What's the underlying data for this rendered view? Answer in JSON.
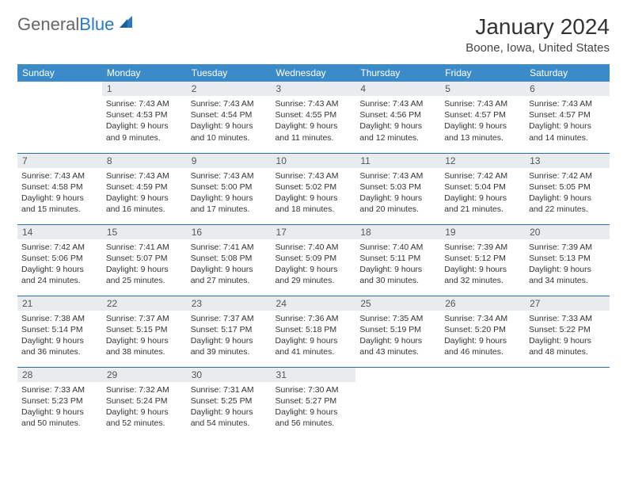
{
  "logo": {
    "general": "General",
    "blue": "Blue"
  },
  "title": "January 2024",
  "location": "Boone, Iowa, United States",
  "colors": {
    "header_bg": "#3b8bc9",
    "header_text": "#ffffff",
    "daynum_bg": "#e9ecef",
    "row_border": "#2a6da8",
    "logo_accent": "#2a7abf"
  },
  "day_headers": [
    "Sunday",
    "Monday",
    "Tuesday",
    "Wednesday",
    "Thursday",
    "Friday",
    "Saturday"
  ],
  "weeks": [
    [
      {
        "n": "",
        "sr": "",
        "ss": "",
        "dl": ""
      },
      {
        "n": "1",
        "sr": "7:43 AM",
        "ss": "4:53 PM",
        "dl": "9 hours and 9 minutes."
      },
      {
        "n": "2",
        "sr": "7:43 AM",
        "ss": "4:54 PM",
        "dl": "9 hours and 10 minutes."
      },
      {
        "n": "3",
        "sr": "7:43 AM",
        "ss": "4:55 PM",
        "dl": "9 hours and 11 minutes."
      },
      {
        "n": "4",
        "sr": "7:43 AM",
        "ss": "4:56 PM",
        "dl": "9 hours and 12 minutes."
      },
      {
        "n": "5",
        "sr": "7:43 AM",
        "ss": "4:57 PM",
        "dl": "9 hours and 13 minutes."
      },
      {
        "n": "6",
        "sr": "7:43 AM",
        "ss": "4:57 PM",
        "dl": "9 hours and 14 minutes."
      }
    ],
    [
      {
        "n": "7",
        "sr": "7:43 AM",
        "ss": "4:58 PM",
        "dl": "9 hours and 15 minutes."
      },
      {
        "n": "8",
        "sr": "7:43 AM",
        "ss": "4:59 PM",
        "dl": "9 hours and 16 minutes."
      },
      {
        "n": "9",
        "sr": "7:43 AM",
        "ss": "5:00 PM",
        "dl": "9 hours and 17 minutes."
      },
      {
        "n": "10",
        "sr": "7:43 AM",
        "ss": "5:02 PM",
        "dl": "9 hours and 18 minutes."
      },
      {
        "n": "11",
        "sr": "7:43 AM",
        "ss": "5:03 PM",
        "dl": "9 hours and 20 minutes."
      },
      {
        "n": "12",
        "sr": "7:42 AM",
        "ss": "5:04 PM",
        "dl": "9 hours and 21 minutes."
      },
      {
        "n": "13",
        "sr": "7:42 AM",
        "ss": "5:05 PM",
        "dl": "9 hours and 22 minutes."
      }
    ],
    [
      {
        "n": "14",
        "sr": "7:42 AM",
        "ss": "5:06 PM",
        "dl": "9 hours and 24 minutes."
      },
      {
        "n": "15",
        "sr": "7:41 AM",
        "ss": "5:07 PM",
        "dl": "9 hours and 25 minutes."
      },
      {
        "n": "16",
        "sr": "7:41 AM",
        "ss": "5:08 PM",
        "dl": "9 hours and 27 minutes."
      },
      {
        "n": "17",
        "sr": "7:40 AM",
        "ss": "5:09 PM",
        "dl": "9 hours and 29 minutes."
      },
      {
        "n": "18",
        "sr": "7:40 AM",
        "ss": "5:11 PM",
        "dl": "9 hours and 30 minutes."
      },
      {
        "n": "19",
        "sr": "7:39 AM",
        "ss": "5:12 PM",
        "dl": "9 hours and 32 minutes."
      },
      {
        "n": "20",
        "sr": "7:39 AM",
        "ss": "5:13 PM",
        "dl": "9 hours and 34 minutes."
      }
    ],
    [
      {
        "n": "21",
        "sr": "7:38 AM",
        "ss": "5:14 PM",
        "dl": "9 hours and 36 minutes."
      },
      {
        "n": "22",
        "sr": "7:37 AM",
        "ss": "5:15 PM",
        "dl": "9 hours and 38 minutes."
      },
      {
        "n": "23",
        "sr": "7:37 AM",
        "ss": "5:17 PM",
        "dl": "9 hours and 39 minutes."
      },
      {
        "n": "24",
        "sr": "7:36 AM",
        "ss": "5:18 PM",
        "dl": "9 hours and 41 minutes."
      },
      {
        "n": "25",
        "sr": "7:35 AM",
        "ss": "5:19 PM",
        "dl": "9 hours and 43 minutes."
      },
      {
        "n": "26",
        "sr": "7:34 AM",
        "ss": "5:20 PM",
        "dl": "9 hours and 46 minutes."
      },
      {
        "n": "27",
        "sr": "7:33 AM",
        "ss": "5:22 PM",
        "dl": "9 hours and 48 minutes."
      }
    ],
    [
      {
        "n": "28",
        "sr": "7:33 AM",
        "ss": "5:23 PM",
        "dl": "9 hours and 50 minutes."
      },
      {
        "n": "29",
        "sr": "7:32 AM",
        "ss": "5:24 PM",
        "dl": "9 hours and 52 minutes."
      },
      {
        "n": "30",
        "sr": "7:31 AM",
        "ss": "5:25 PM",
        "dl": "9 hours and 54 minutes."
      },
      {
        "n": "31",
        "sr": "7:30 AM",
        "ss": "5:27 PM",
        "dl": "9 hours and 56 minutes."
      },
      {
        "n": "",
        "sr": "",
        "ss": "",
        "dl": ""
      },
      {
        "n": "",
        "sr": "",
        "ss": "",
        "dl": ""
      },
      {
        "n": "",
        "sr": "",
        "ss": "",
        "dl": ""
      }
    ]
  ],
  "labels": {
    "sunrise": "Sunrise:",
    "sunset": "Sunset:",
    "daylight": "Daylight:"
  }
}
